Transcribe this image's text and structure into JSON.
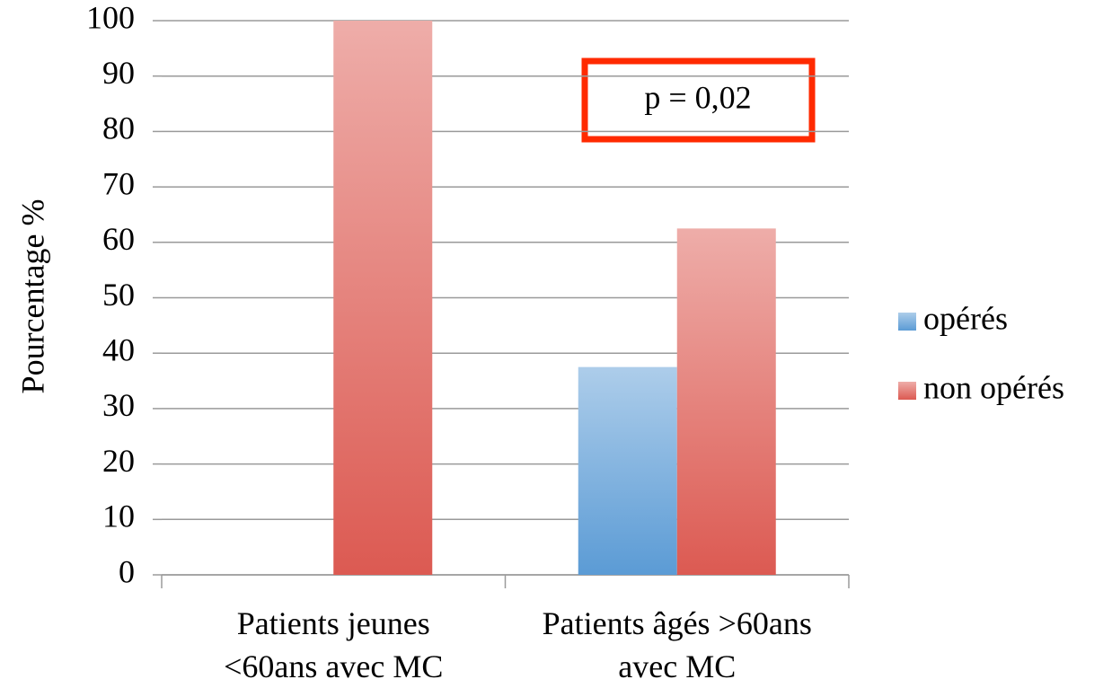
{
  "chart_data": {
    "type": "bar",
    "y_label": "Pourcentage %",
    "annotation": "p = 0,02",
    "categories": [
      "Patients jeunes\n<60ans avec MC",
      "Patients âgés >60ans\navec MC"
    ],
    "series": [
      {
        "name": "opérés",
        "color": "#5b9bd5",
        "values": [
          0,
          37.5
        ]
      },
      {
        "name": "non opérés",
        "color": "#dc5a52",
        "values": [
          100,
          62.5
        ]
      }
    ],
    "ylim": [
      0,
      100
    ],
    "yticks": [
      0,
      10,
      20,
      30,
      40,
      50,
      60,
      70,
      80,
      90,
      100
    ],
    "grid": true,
    "legend": "right"
  }
}
